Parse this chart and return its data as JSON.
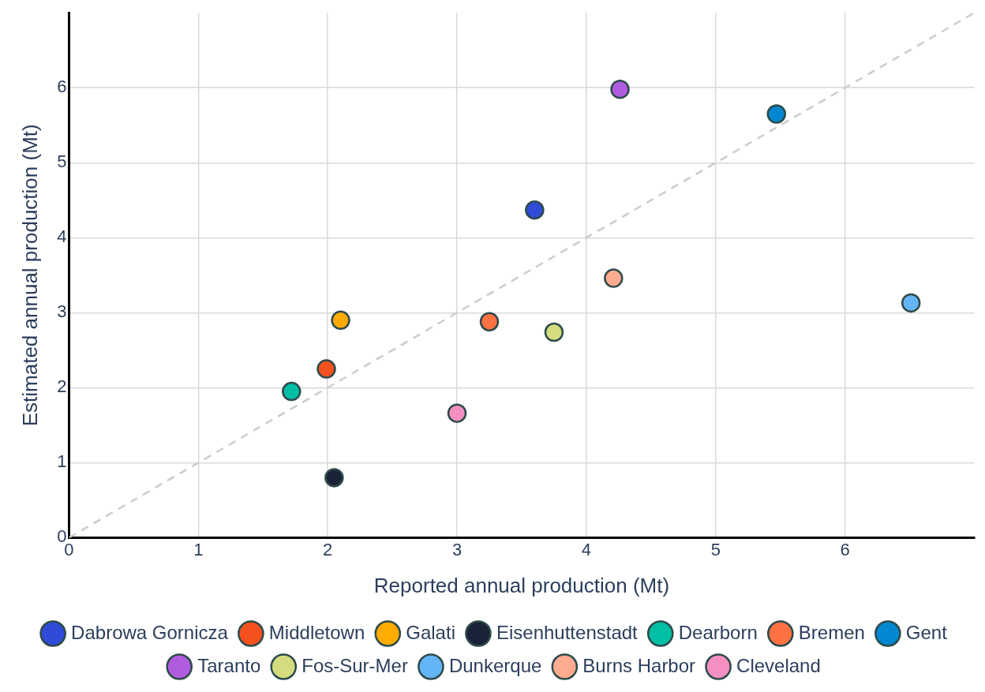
{
  "chart_data": {
    "type": "scatter",
    "xlabel": "Reported annual production (Mt)",
    "ylabel": "Estimated annual production (Mt)",
    "xlim": [
      0,
      7
    ],
    "ylim": [
      0,
      7
    ],
    "xticks": [
      0,
      1,
      2,
      3,
      4,
      5,
      6
    ],
    "yticks": [
      0,
      1,
      2,
      3,
      4,
      5,
      6
    ],
    "grid": true,
    "legend": "bottom",
    "marker": "circle",
    "series": [
      {
        "name": "Dabrowa Gornicza",
        "color": "#2f4bd8",
        "x": [
          3.6
        ],
        "values": [
          4.37
        ]
      },
      {
        "name": "Middletown",
        "color": "#f4511e",
        "x": [
          1.99
        ],
        "values": [
          2.25
        ]
      },
      {
        "name": "Galati",
        "color": "#ffab00",
        "x": [
          2.1
        ],
        "values": [
          2.9
        ]
      },
      {
        "name": "Eisenhuttenstadt",
        "color": "#1a2238",
        "x": [
          2.05
        ],
        "values": [
          0.8
        ]
      },
      {
        "name": "Dearborn",
        "color": "#00bfa5",
        "x": [
          1.72
        ],
        "values": [
          1.95
        ]
      },
      {
        "name": "Bremen",
        "color": "#ff7043",
        "x": [
          3.25
        ],
        "values": [
          2.88
        ]
      },
      {
        "name": "Gent",
        "color": "#0288d1",
        "x": [
          5.47
        ],
        "values": [
          5.65
        ]
      },
      {
        "name": "Taranto",
        "color": "#b05ce0",
        "x": [
          4.26
        ],
        "values": [
          5.98
        ]
      },
      {
        "name": "Fos-Sur-Mer",
        "color": "#d4dc7f",
        "x": [
          3.75
        ],
        "values": [
          2.74
        ]
      },
      {
        "name": "Dunkerque",
        "color": "#64b5f6",
        "x": [
          6.51
        ],
        "values": [
          3.13
        ]
      },
      {
        "name": "Burns Harbor",
        "color": "#ffab91",
        "x": [
          4.21
        ],
        "values": [
          3.46
        ]
      },
      {
        "name": "Cleveland",
        "color": "#f48fc1",
        "x": [
          3.0
        ],
        "values": [
          1.66
        ]
      },
      {
        "type": "line",
        "color": "#cccccc",
        "line_style": "dashed",
        "marker": "none",
        "x": [
          0,
          7
        ],
        "values": [
          0,
          7
        ]
      }
    ]
  }
}
